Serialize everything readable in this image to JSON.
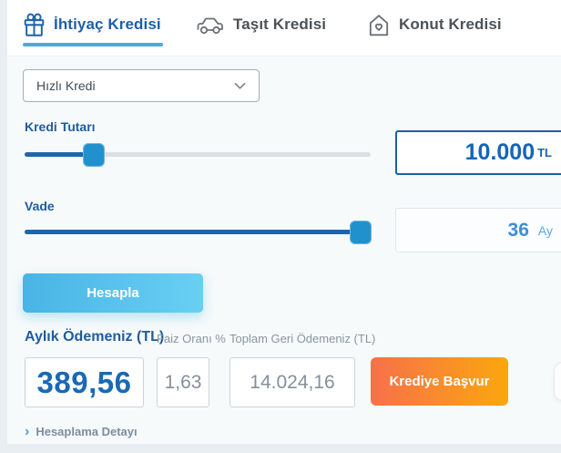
{
  "tabs": {
    "items": [
      {
        "label": "İhtiyaç Kredisi",
        "icon": "gift-icon",
        "active": true
      },
      {
        "label": "Taşıt Kredisi",
        "icon": "car-icon",
        "active": false
      },
      {
        "label": "Konut Kredisi",
        "icon": "house-heart-icon",
        "active": false
      }
    ]
  },
  "loan_type_select": {
    "value": "Hızlı Kredi"
  },
  "amount": {
    "label": "Kredi Tutarı",
    "value": "10.000",
    "unit": "TL",
    "slider_fill": "20%"
  },
  "term": {
    "label": "Vade",
    "value": "36",
    "unit": "Ay",
    "slider_fill": "97%"
  },
  "calculate_button": {
    "label": "Hesapla"
  },
  "results": {
    "monthly": {
      "label": "Aylık Ödemeniz (TL)",
      "value": "389,56"
    },
    "rate": {
      "label": "Faiz Oranı %",
      "value": "1,63"
    },
    "total": {
      "label": "Toplam Geri Ödemeniz (TL)",
      "value": "14.024,16"
    }
  },
  "apply_button": {
    "label": "Krediye Başvur"
  },
  "details_link": {
    "chevron": "›",
    "label": "Hesaplama Detayı"
  },
  "colors": {
    "active_tab": "#1f5fa9",
    "tab_underline": "#4ba9e0",
    "slider_fill": "#1b67ad",
    "slider_handle": "#2191ce",
    "calc_gradient_start": "#49b4e5",
    "calc_gradient_end": "#69cff3",
    "apply_gradient_start": "#f7704a",
    "apply_gradient_end": "#fba70e",
    "primary_value": "#1a69b4"
  }
}
